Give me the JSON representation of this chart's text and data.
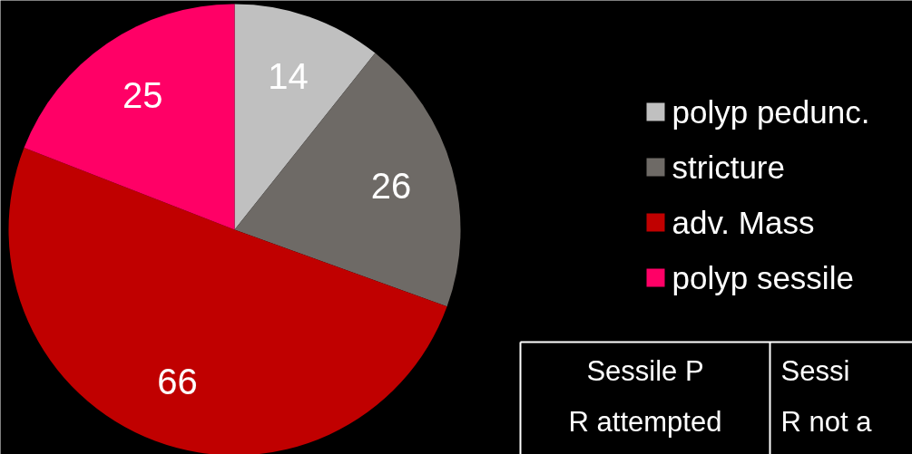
{
  "chart_data": {
    "type": "pie",
    "categories": [
      "polyp pedunc.",
      "stricture",
      "adv. Mass",
      "polyp sessile"
    ],
    "values": [
      14,
      26,
      66,
      25
    ],
    "colors": [
      "#c0c0c0",
      "#6e6a66",
      "#c00000",
      "#ff0066"
    ],
    "data_labels": true,
    "legend": "right",
    "annotations": [
      "Sessile P\nR attempted",
      "Sessi\nR not a"
    ]
  }
}
